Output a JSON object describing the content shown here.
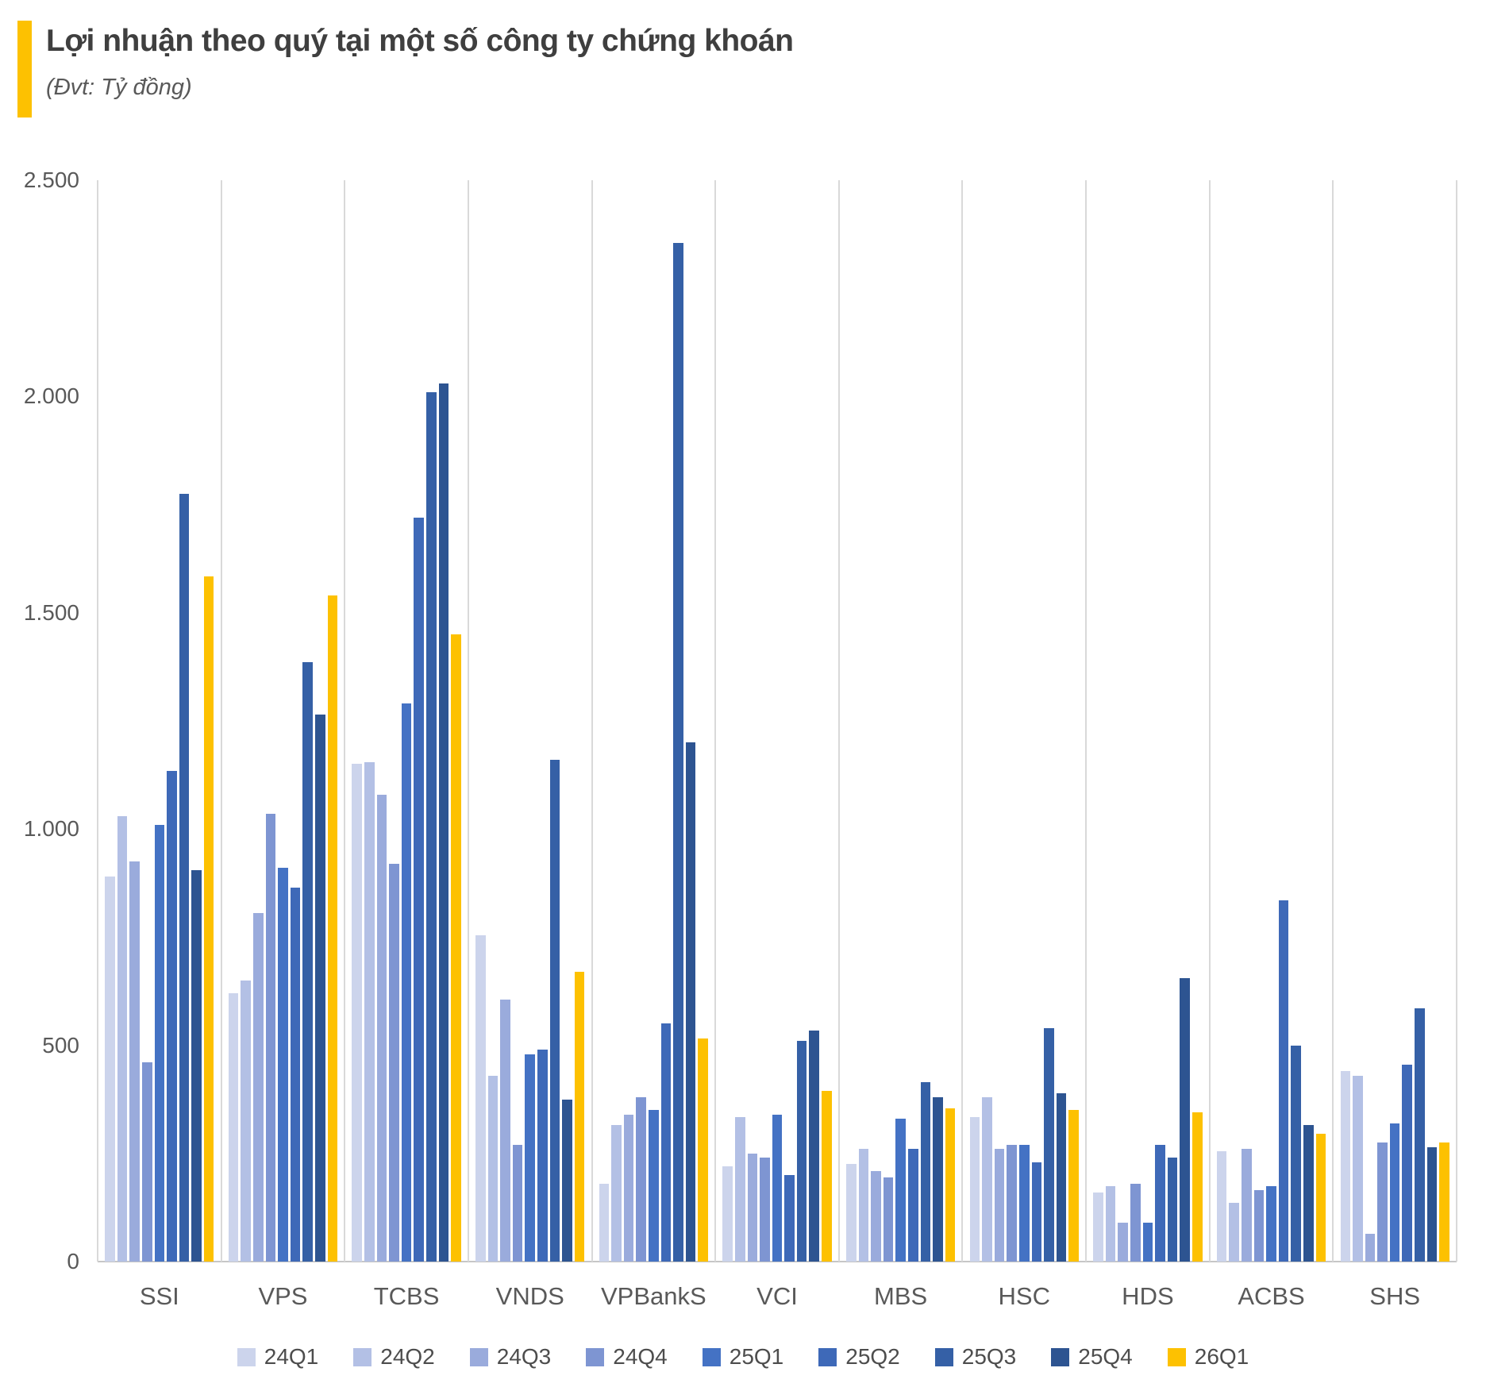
{
  "header": {
    "title": "Lợi nhuận theo quý tại một số công ty chứng khoán",
    "subtitle": "(Đvt: Tỷ đồng)",
    "accent_color": "#fdc101"
  },
  "colors": {
    "title_text": "#3f3f3f",
    "axis_text": "#595959",
    "separator_line": "#d9d9d9",
    "baseline": "#c6c6c6",
    "background": "#ffffff"
  },
  "chart_data": {
    "type": "bar",
    "title": "Lợi nhuận theo quý tại một số công ty chứng khoán",
    "unit_note": "Đvt: Tỷ đồng",
    "xlabel": "",
    "ylabel": "",
    "ylim": [
      0,
      2500
    ],
    "grid": "vertical category separators only, no horizontal gridlines",
    "legend_position": "bottom",
    "y_ticks": [
      {
        "value": 0,
        "label": "0"
      },
      {
        "value": 500,
        "label": "500"
      },
      {
        "value": 1000,
        "label": "1.000"
      },
      {
        "value": 1500,
        "label": "1.500"
      },
      {
        "value": 2000,
        "label": "2.000"
      },
      {
        "value": 2500,
        "label": "2.500"
      }
    ],
    "categories": [
      "SSI",
      "VPS",
      "TCBS",
      "VNDS",
      "VPBankS",
      "VCI",
      "MBS",
      "HSC",
      "HDS",
      "ACBS",
      "SHS"
    ],
    "series": [
      {
        "name": "24Q1",
        "color": "#ccd4ec",
        "values": [
          890,
          620,
          1150,
          755,
          180,
          220,
          225,
          335,
          160,
          255,
          440
        ]
      },
      {
        "name": "24Q2",
        "color": "#b3c0e5",
        "values": [
          1030,
          650,
          1155,
          430,
          315,
          335,
          260,
          380,
          175,
          135,
          430
        ]
      },
      {
        "name": "24Q3",
        "color": "#9aabdc",
        "values": [
          925,
          805,
          1080,
          605,
          340,
          250,
          210,
          260,
          90,
          260,
          65
        ]
      },
      {
        "name": "24Q4",
        "color": "#7e95d2",
        "values": [
          460,
          1035,
          920,
          270,
          380,
          240,
          195,
          270,
          180,
          165,
          275
        ]
      },
      {
        "name": "25Q1",
        "color": "#4472c4",
        "values": [
          1010,
          910,
          1290,
          480,
          350,
          340,
          330,
          270,
          90,
          175,
          320
        ]
      },
      {
        "name": "25Q2",
        "color": "#3e69b8",
        "values": [
          1135,
          865,
          1720,
          490,
          550,
          200,
          260,
          230,
          270,
          835,
          455
        ]
      },
      {
        "name": "25Q3",
        "color": "#3560a6",
        "values": [
          1775,
          1385,
          2010,
          1160,
          2355,
          510,
          415,
          540,
          240,
          500,
          585
        ]
      },
      {
        "name": "25Q4",
        "color": "#2d5491",
        "values": [
          905,
          1265,
          2030,
          375,
          1200,
          535,
          380,
          390,
          655,
          315,
          265
        ]
      },
      {
        "name": "26Q1",
        "color": "#fdc101",
        "values": [
          1585,
          1540,
          1450,
          670,
          515,
          395,
          355,
          350,
          345,
          295,
          275
        ]
      }
    ]
  }
}
